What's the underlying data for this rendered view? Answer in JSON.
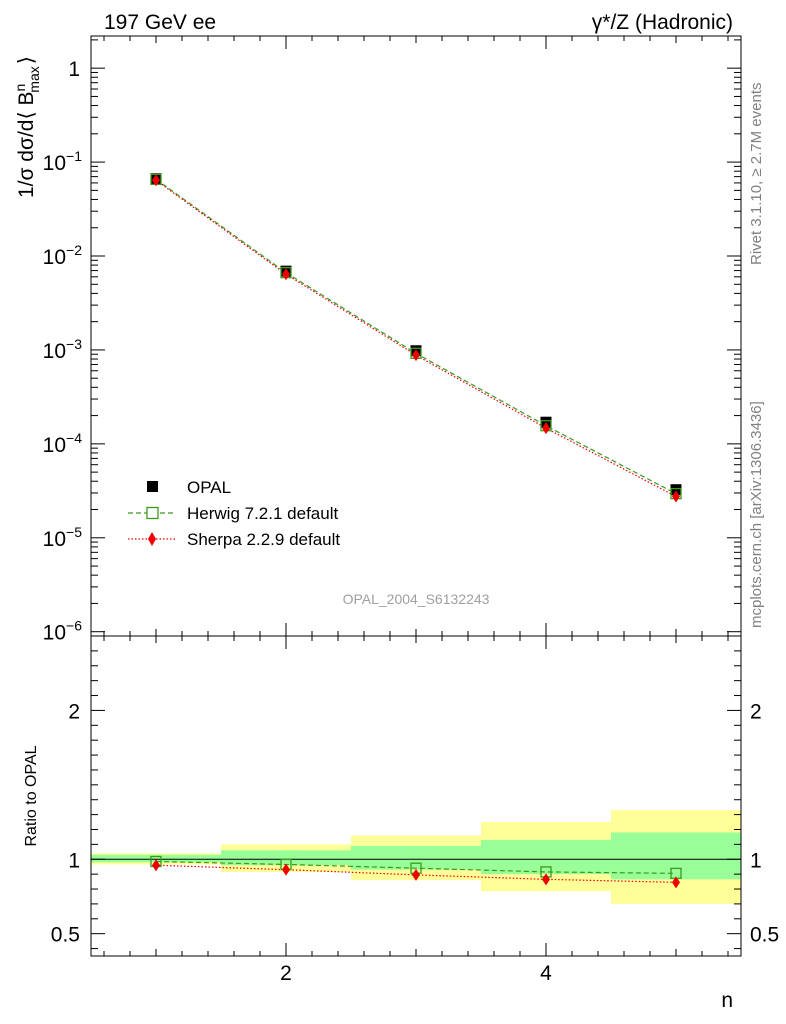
{
  "header": {
    "left_title": "197 GeV ee",
    "right_title": "γ*/Z (Hadronic)"
  },
  "side_labels": {
    "rivet": "Rivet 3.1.10, ≥ 2.7M events",
    "mcplots": "mcplots.cern.ch [arXiv:1306.3436]"
  },
  "watermark": "OPAL_2004_S6132243",
  "colors": {
    "data": "#000000",
    "herwig": "#3a9a1a",
    "sherpa": "#ee0000",
    "band_inner": "#99ff99",
    "band_outer": "#ffff99"
  },
  "chart_data": [
    {
      "type": "scatter",
      "panel": "main",
      "ylabel": "1/σ dσ/d⟨ B",
      "ylabel_sup": "n",
      "ylabel_sub": "max",
      "ylabel_end": "⟩",
      "yscale": "log",
      "xlim": [
        0.5,
        5.5
      ],
      "ylim": [
        9e-07,
        2.2
      ],
      "yticks": [
        {
          "label": "1",
          "value": 1
        },
        {
          "base": "10",
          "exp": "−1",
          "value": 0.1
        },
        {
          "base": "10",
          "exp": "−2",
          "value": 0.01
        },
        {
          "base": "10",
          "exp": "−3",
          "value": 0.001
        },
        {
          "base": "10",
          "exp": "−4",
          "value": 0.0001
        },
        {
          "base": "10",
          "exp": "−5",
          "value": 1e-05
        },
        {
          "base": "10",
          "exp": "−6",
          "value": 1e-06
        }
      ],
      "legend": {
        "position": "bottom-left"
      },
      "series": [
        {
          "name": "OPAL",
          "marker": "filled-square",
          "x": [
            1,
            2,
            3,
            4,
            5
          ],
          "y": [
            0.0665,
            0.0069,
            0.00098,
            0.00017,
            3.25e-05
          ]
        },
        {
          "name": "Herwig 7.2.1 default",
          "marker": "open-square",
          "line": "dashed",
          "x": [
            1,
            2,
            3,
            4,
            5
          ],
          "y": [
            0.0655,
            0.00665,
            0.00092,
            0.000156,
            2.95e-05
          ]
        },
        {
          "name": "Sherpa 2.2.9 default",
          "marker": "diamond",
          "line": "dotted",
          "x": [
            1,
            2,
            3,
            4,
            5
          ],
          "y": [
            0.064,
            0.0064,
            0.00088,
            0.000147,
            2.75e-05
          ]
        }
      ]
    },
    {
      "type": "scatter",
      "panel": "ratio",
      "xlabel": "n",
      "ylabel": "Ratio to OPAL",
      "xlim": [
        0.5,
        5.5
      ],
      "ylim": [
        0.35,
        2.5
      ],
      "xticks": [
        2,
        4
      ],
      "yticks": [
        0.5,
        1,
        2
      ],
      "bands": [
        {
          "x": [
            0.5,
            1.5
          ],
          "inner": [
            0.98,
            1.03
          ],
          "outer": [
            0.965,
            1.04
          ]
        },
        {
          "x": [
            1.5,
            2.5
          ],
          "inner": [
            0.96,
            1.06
          ],
          "outer": [
            0.915,
            1.1
          ]
        },
        {
          "x": [
            2.5,
            3.5
          ],
          "inner": [
            0.93,
            1.09
          ],
          "outer": [
            0.86,
            1.16
          ]
        },
        {
          "x": [
            3.5,
            4.5
          ],
          "inner": [
            0.9,
            1.13
          ],
          "outer": [
            0.785,
            1.25
          ]
        },
        {
          "x": [
            4.5,
            5.5
          ],
          "inner": [
            0.865,
            1.18
          ],
          "outer": [
            0.7,
            1.33
          ]
        }
      ],
      "series": [
        {
          "name": "Herwig 7.2.1 default",
          "x": [
            1,
            2,
            3,
            4,
            5
          ],
          "y": [
            0.985,
            0.965,
            0.94,
            0.915,
            0.905
          ]
        },
        {
          "name": "Sherpa 2.2.9 default",
          "x": [
            1,
            2,
            3,
            4,
            5
          ],
          "y": [
            0.96,
            0.93,
            0.895,
            0.865,
            0.845
          ]
        }
      ]
    }
  ]
}
